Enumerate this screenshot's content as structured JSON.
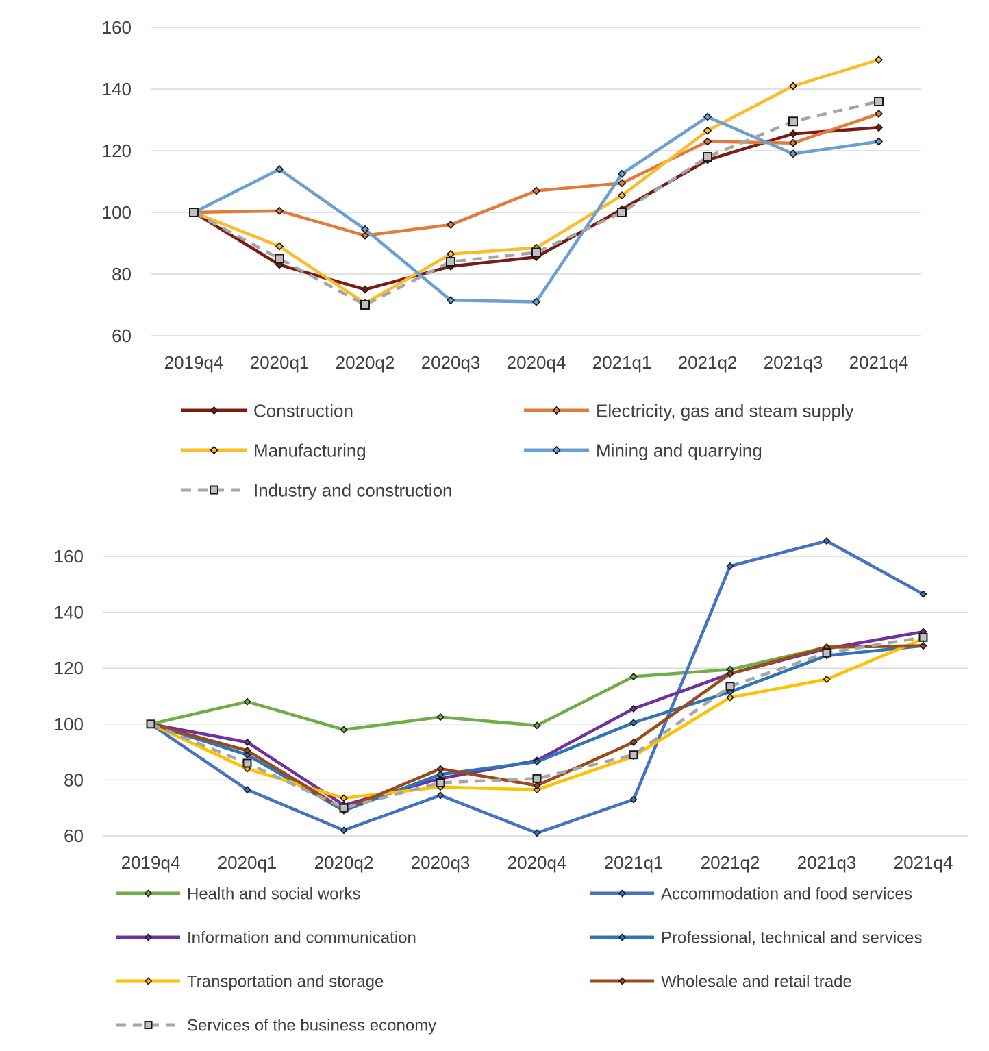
{
  "chart_data": [
    {
      "type": "line",
      "categories": [
        "2019q4",
        "2020q1",
        "2020q2",
        "2020q3",
        "2020q4",
        "2021q1",
        "2021q2",
        "2021q3",
        "2021q4"
      ],
      "ylim": [
        60,
        160
      ],
      "yticks": [
        "60",
        "80",
        "100",
        "120",
        "140",
        "160"
      ],
      "grid": true,
      "legend_position": "bottom",
      "series": [
        {
          "name": "Construction",
          "color": "#7B1C14",
          "dashed": false,
          "marker": "diamond",
          "values": [
            100,
            83,
            75,
            82.5,
            85.5,
            101,
            117,
            125.5,
            127.5
          ]
        },
        {
          "name": "Electricity, gas and steam supply",
          "color": "#E07B39",
          "dashed": false,
          "marker": "diamond",
          "values": [
            100,
            100.5,
            92.5,
            96,
            107,
            109.5,
            123,
            122.5,
            132
          ]
        },
        {
          "name": "Manufacturing",
          "color": "#FBBC2C",
          "dashed": false,
          "marker": "diamond",
          "values": [
            100,
            89,
            70.5,
            86.5,
            88.5,
            105.5,
            126.5,
            141,
            149.5
          ]
        },
        {
          "name": "Mining and quarrying",
          "color": "#6A9FD4",
          "dashed": false,
          "marker": "diamond",
          "values": [
            100,
            114,
            94.5,
            71.5,
            71,
            112.5,
            131,
            119,
            123
          ]
        },
        {
          "name": "Industry and construction",
          "color": "#A6A6A6",
          "dashed": true,
          "marker": "square",
          "values": [
            100,
            85,
            70,
            84,
            87,
            100,
            118,
            129.5,
            136
          ]
        }
      ]
    },
    {
      "type": "line",
      "categories": [
        "2019q4",
        "2020q1",
        "2020q2",
        "2020q3",
        "2020q4",
        "2021q1",
        "2021q2",
        "2021q3",
        "2021q4"
      ],
      "ylim": [
        60,
        170
      ],
      "yticks": [
        "60",
        "80",
        "100",
        "120",
        "140",
        "160"
      ],
      "grid": true,
      "legend_position": "bottom",
      "series": [
        {
          "name": "Health and social works",
          "color": "#70AD47",
          "dashed": false,
          "marker": "diamond",
          "values": [
            100,
            108,
            98,
            102.5,
            99.5,
            117,
            119.5,
            127.5,
            128
          ]
        },
        {
          "name": "Accommodation and food services",
          "color": "#4472C4",
          "dashed": false,
          "marker": "diamond",
          "values": [
            100,
            76.5,
            62,
            74.5,
            61,
            73,
            156.5,
            165.5,
            146.5
          ]
        },
        {
          "name": "Information and communication",
          "color": "#7030A0",
          "dashed": false,
          "marker": "diamond",
          "values": [
            100,
            93.5,
            71,
            80.5,
            87,
            105.5,
            118,
            127,
            133
          ]
        },
        {
          "name": "Professional, technical and services",
          "color": "#2E75B6",
          "dashed": false,
          "marker": "diamond",
          "values": [
            100,
            89,
            69,
            82,
            86.5,
            100.5,
            111.5,
            124.5,
            128
          ]
        },
        {
          "name": "Transportation and storage",
          "color": "#FFC000",
          "dashed": false,
          "marker": "diamond",
          "values": [
            100,
            84,
            73.5,
            77.5,
            76.5,
            88.5,
            109.5,
            116,
            130.5
          ]
        },
        {
          "name": "Wholesale and retail trade",
          "color": "#9C4A1A",
          "dashed": false,
          "marker": "diamond",
          "values": [
            100,
            90.5,
            69.5,
            84,
            78,
            93.5,
            118,
            127.5,
            128
          ]
        },
        {
          "name": "Services of the business economy",
          "color": "#A6A6A6",
          "dashed": true,
          "marker": "square",
          "values": [
            100,
            86,
            70,
            79,
            80.5,
            89,
            113.5,
            125.5,
            131
          ]
        }
      ]
    }
  ]
}
